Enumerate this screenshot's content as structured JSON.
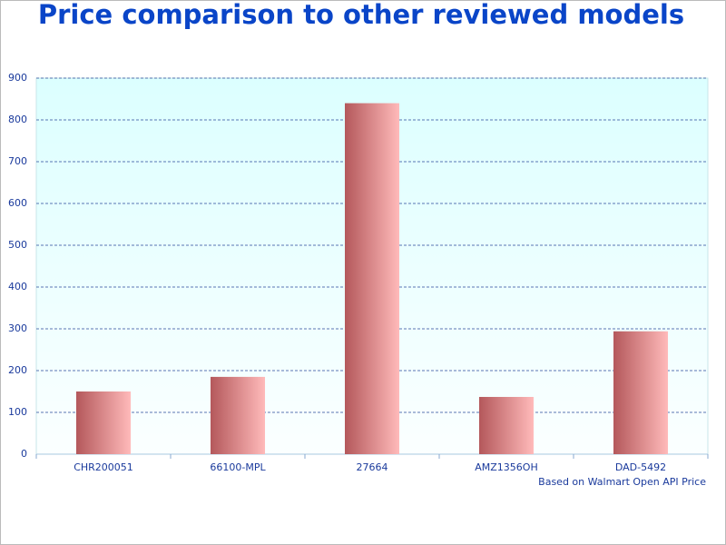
{
  "chart_data": {
    "type": "bar",
    "title": "Price comparison to other reviewed models",
    "categories": [
      "CHR200051",
      "66100-MPL",
      "27664",
      "AMZ1356OH",
      "DAD-5492"
    ],
    "values": [
      150,
      185,
      840,
      137,
      294
    ],
    "gradient": [
      "#b4585b",
      "#ffbaba"
    ],
    "ylim": [
      0,
      900
    ],
    "yticks": [
      0,
      100,
      200,
      300,
      400,
      500,
      600,
      700,
      800,
      900
    ],
    "grid": true,
    "note": "Based on Walmart Open API Price"
  }
}
